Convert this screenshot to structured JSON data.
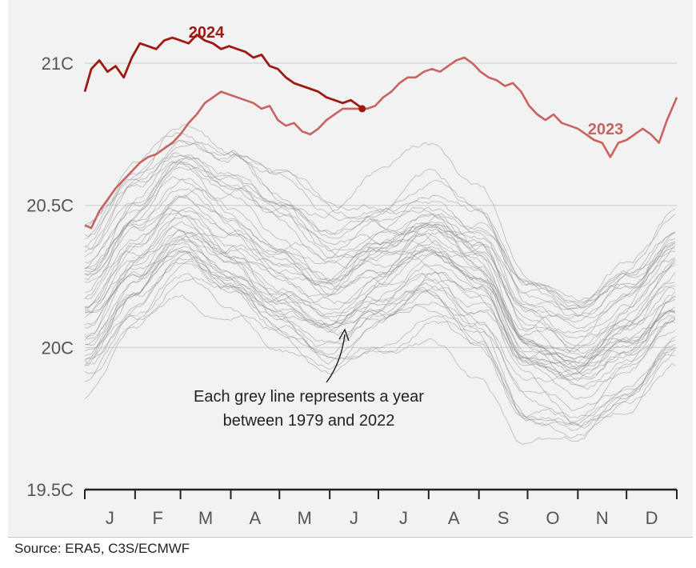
{
  "chart_data": {
    "type": "line",
    "title": "",
    "xlabel": "",
    "ylabel": "",
    "x_unit": "day of year",
    "xlim": [
      1,
      366
    ],
    "ylim": [
      19.5,
      21.2
    ],
    "y_ticks": [
      19.5,
      20,
      20.5,
      21
    ],
    "y_tick_labels": [
      "19.5C",
      "20C",
      "20.5C",
      "21C"
    ],
    "month_labels": [
      "J",
      "F",
      "M",
      "A",
      "M",
      "J",
      "J",
      "A",
      "S",
      "O",
      "N",
      "D"
    ],
    "month_starts": [
      1,
      32,
      60,
      91,
      121,
      152,
      182,
      213,
      244,
      274,
      305,
      335,
      366
    ],
    "colors": {
      "y2024": "#9e1a10",
      "y2023": "#c76361",
      "grey": "#888888",
      "grid": "#cccccc",
      "axis": "#222222"
    },
    "series": [
      {
        "name": "2024",
        "label": "2024",
        "x": [
          1,
          5,
          10,
          15,
          20,
          25,
          30,
          35,
          40,
          45,
          50,
          55,
          60,
          65,
          70,
          75,
          80,
          85,
          90,
          95,
          100,
          105,
          110,
          115,
          120,
          125,
          130,
          135,
          140,
          145,
          150,
          155,
          160,
          165,
          170,
          172
        ],
        "values": [
          20.9,
          20.98,
          21.01,
          20.97,
          20.99,
          20.95,
          21.02,
          21.07,
          21.06,
          21.05,
          21.08,
          21.09,
          21.08,
          21.07,
          21.1,
          21.08,
          21.07,
          21.05,
          21.06,
          21.05,
          21.04,
          21.02,
          21.03,
          20.99,
          20.98,
          20.95,
          20.93,
          20.92,
          20.91,
          20.9,
          20.88,
          20.87,
          20.86,
          20.87,
          20.85,
          20.84
        ]
      },
      {
        "name": "2023",
        "label": "2023",
        "x": [
          1,
          5,
          10,
          15,
          20,
          25,
          30,
          35,
          40,
          45,
          50,
          55,
          60,
          65,
          70,
          75,
          80,
          85,
          90,
          95,
          100,
          105,
          110,
          115,
          120,
          125,
          130,
          135,
          140,
          145,
          150,
          155,
          160,
          165,
          170,
          175,
          180,
          185,
          190,
          195,
          200,
          205,
          210,
          215,
          220,
          225,
          230,
          235,
          240,
          245,
          250,
          255,
          260,
          265,
          270,
          275,
          280,
          285,
          290,
          295,
          300,
          305,
          310,
          315,
          320,
          325,
          330,
          335,
          340,
          345,
          350,
          355,
          360,
          366
        ],
        "values": [
          20.43,
          20.42,
          20.48,
          20.52,
          20.56,
          20.59,
          20.62,
          20.65,
          20.67,
          20.68,
          20.7,
          20.72,
          20.75,
          20.79,
          20.82,
          20.86,
          20.88,
          20.9,
          20.89,
          20.88,
          20.87,
          20.86,
          20.84,
          20.85,
          20.8,
          20.78,
          20.79,
          20.76,
          20.75,
          20.77,
          20.8,
          20.82,
          20.84,
          20.84,
          20.84,
          20.84,
          20.85,
          20.88,
          20.9,
          20.93,
          20.95,
          20.95,
          20.97,
          20.98,
          20.97,
          20.99,
          21.01,
          21.02,
          21.0,
          20.97,
          20.95,
          20.94,
          20.92,
          20.93,
          20.9,
          20.85,
          20.82,
          20.8,
          20.82,
          20.79,
          20.78,
          20.77,
          20.75,
          20.73,
          20.72,
          20.67,
          20.72,
          20.73,
          20.75,
          20.77,
          20.75,
          20.72,
          20.8,
          20.88
        ]
      }
    ],
    "grey_series_summary": {
      "label": "Each grey line represents a year between 1979 and 2022",
      "years_from": 1979,
      "years_to": 2022,
      "count": 44,
      "x": [
        1,
        32,
        60,
        91,
        121,
        152,
        182,
        213,
        244,
        274,
        305,
        335,
        366
      ],
      "mean_values": [
        20.15,
        20.35,
        20.48,
        20.38,
        20.28,
        20.2,
        20.28,
        20.35,
        20.25,
        20.0,
        19.95,
        20.05,
        20.2
      ],
      "spread": 0.3
    },
    "annotations": {
      "grey_note_line1": "Each grey line represents a year",
      "grey_note_line2": "between 1979 and 2022",
      "label_2024": "2024",
      "label_2023": "2023"
    }
  },
  "source": "Source: ERA5, C3S/ECMWF"
}
